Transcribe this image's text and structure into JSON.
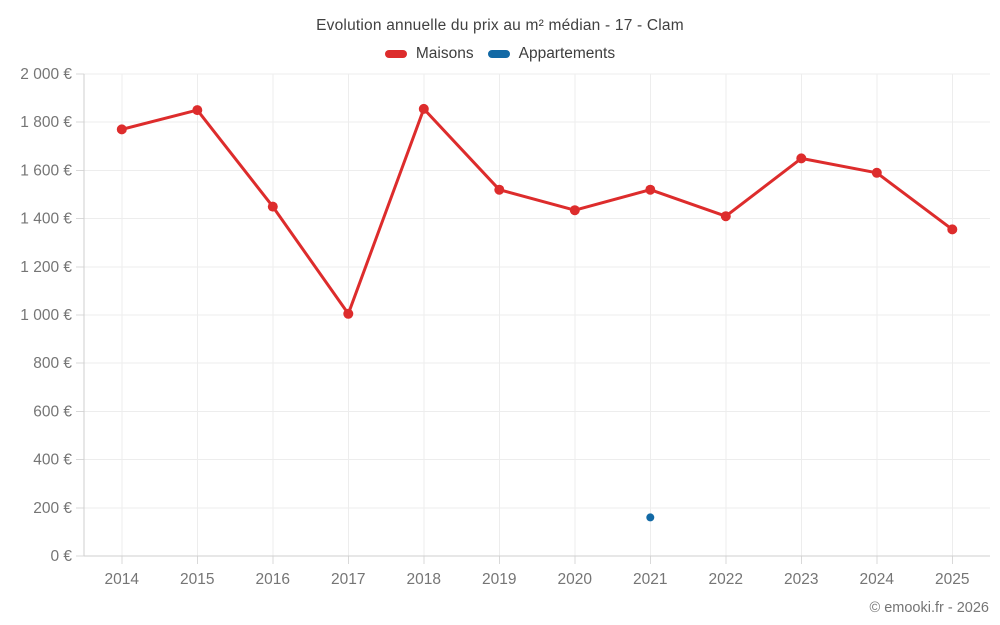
{
  "chart_data": {
    "type": "line",
    "title": "Evolution annuelle du prix au m² médian - 17 - Clam",
    "categories": [
      "2014",
      "2015",
      "2016",
      "2017",
      "2018",
      "2019",
      "2020",
      "2021",
      "2022",
      "2023",
      "2024",
      "2025"
    ],
    "series": [
      {
        "name": "Maisons",
        "color": "#dd2c2c",
        "values": [
          1770,
          1850,
          1450,
          1005,
          1855,
          1520,
          1435,
          1520,
          1410,
          1650,
          1590,
          1355
        ]
      },
      {
        "name": "Appartements",
        "color": "#1269a5",
        "values": [
          null,
          null,
          null,
          null,
          null,
          null,
          null,
          160,
          null,
          null,
          null,
          null
        ]
      }
    ],
    "ylim": [
      0,
      2000
    ],
    "ytick_step": 200,
    "ytick_labels": [
      "0 €",
      "200 €",
      "400 €",
      "600 €",
      "800 €",
      "1 000 €",
      "1 200 €",
      "1 400 €",
      "1 600 €",
      "1 800 €",
      "2 000 €"
    ],
    "grid": true,
    "legend_position": "top",
    "colors": {
      "grid": "#ededed",
      "axis": "#cfcfcf",
      "tick": "#d9d9d9",
      "labels": "#757575",
      "title": "#414141"
    }
  },
  "footer": {
    "copyright": "© emooki.fr - 2026"
  }
}
